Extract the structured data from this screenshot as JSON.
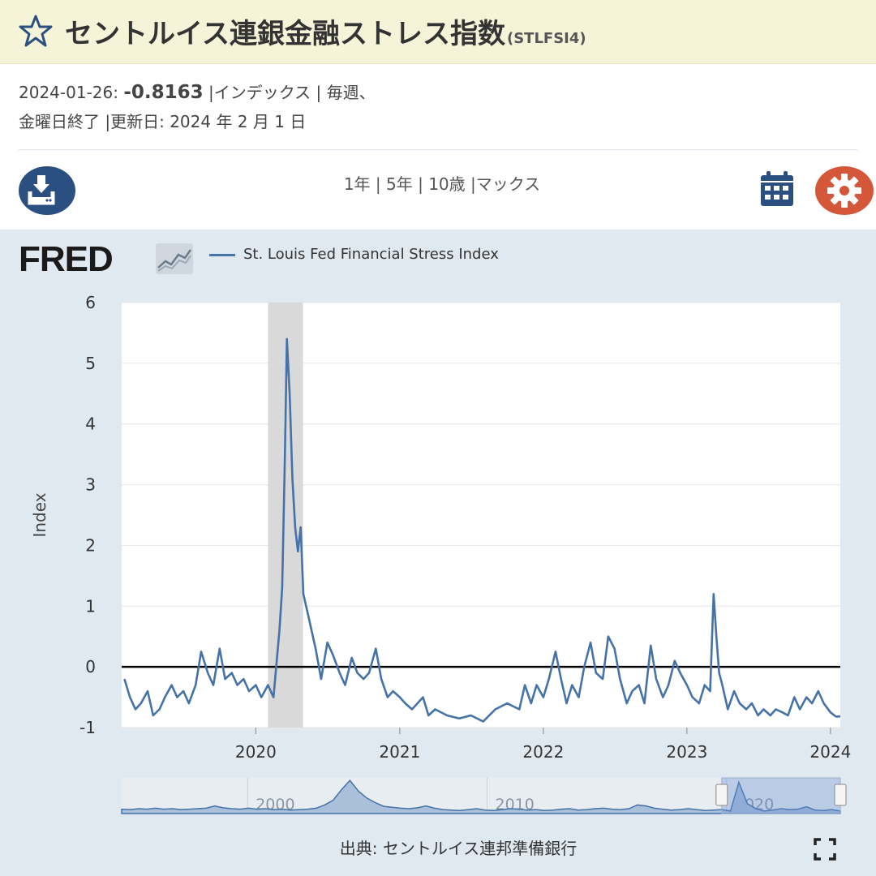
{
  "header": {
    "title": "セントルイス連銀金融ストレス指数",
    "series_id": "(STLFSI4)"
  },
  "meta": {
    "date": "2024-01-26:",
    "value": "-0.8163",
    "unit_freq": " |インデックス | 毎週、",
    "line2": "金曜日終了 |更新日: 2024 年 2 月 1 日"
  },
  "range_links": [
    "1年",
    "| 5年",
    "| 10歳",
    "|マックス"
  ],
  "legend": {
    "series_name": "St. Louis Fed Financial Stress Index"
  },
  "source": "出典: セントルイス連邦準備銀行",
  "colors": {
    "line": "#4572a7",
    "recession": "#d9d9d9",
    "panel": "#e1e9f0",
    "title_bg": "#f5f4d9"
  },
  "icons": [
    "star-icon",
    "download-icon",
    "calendar-icon",
    "gear-icon",
    "fullscreen-icon"
  ],
  "chart_data": {
    "type": "line",
    "ylabel": "Index",
    "ylim": [
      -1,
      6
    ],
    "yticks": [
      6,
      5,
      4,
      3,
      2,
      1,
      0,
      -1
    ],
    "xticks": [
      "2020",
      "2021",
      "2022",
      "2023",
      "2024"
    ],
    "xlim": [
      "2019-01-25",
      "2024-01-26"
    ],
    "zero_line": true,
    "recession_shading": [
      [
        "2020-02-01",
        "2020-04-30"
      ]
    ],
    "series": [
      {
        "name": "St. Louis Fed Financial Stress Index",
        "points": [
          [
            "2019-02-01",
            -0.2
          ],
          [
            "2019-02-15",
            -0.5
          ],
          [
            "2019-03-01",
            -0.7
          ],
          [
            "2019-03-15",
            -0.6
          ],
          [
            "2019-04-01",
            -0.4
          ],
          [
            "2019-04-15",
            -0.8
          ],
          [
            "2019-05-01",
            -0.7
          ],
          [
            "2019-05-15",
            -0.5
          ],
          [
            "2019-06-01",
            -0.3
          ],
          [
            "2019-06-15",
            -0.5
          ],
          [
            "2019-07-01",
            -0.4
          ],
          [
            "2019-07-15",
            -0.6
          ],
          [
            "2019-08-01",
            -0.3
          ],
          [
            "2019-08-15",
            0.25
          ],
          [
            "2019-09-01",
            -0.1
          ],
          [
            "2019-09-15",
            -0.3
          ],
          [
            "2019-10-01",
            0.3
          ],
          [
            "2019-10-15",
            -0.2
          ],
          [
            "2019-11-01",
            -0.1
          ],
          [
            "2019-11-15",
            -0.3
          ],
          [
            "2019-12-01",
            -0.2
          ],
          [
            "2019-12-15",
            -0.4
          ],
          [
            "2020-01-01",
            -0.3
          ],
          [
            "2020-01-15",
            -0.5
          ],
          [
            "2020-02-01",
            -0.3
          ],
          [
            "2020-02-15",
            -0.5
          ],
          [
            "2020-03-01",
            0.6
          ],
          [
            "2020-03-08",
            1.3
          ],
          [
            "2020-03-15",
            3.5
          ],
          [
            "2020-03-20",
            5.4
          ],
          [
            "2020-03-27",
            4.5
          ],
          [
            "2020-04-03",
            3.1
          ],
          [
            "2020-04-10",
            2.3
          ],
          [
            "2020-04-17",
            1.9
          ],
          [
            "2020-04-24",
            2.3
          ],
          [
            "2020-05-01",
            1.2
          ],
          [
            "2020-05-15",
            0.8
          ],
          [
            "2020-06-01",
            0.3
          ],
          [
            "2020-06-15",
            -0.2
          ],
          [
            "2020-07-01",
            0.4
          ],
          [
            "2020-07-15",
            0.2
          ],
          [
            "2020-08-01",
            -0.1
          ],
          [
            "2020-08-15",
            -0.3
          ],
          [
            "2020-09-01",
            0.15
          ],
          [
            "2020-09-15",
            -0.1
          ],
          [
            "2020-10-01",
            -0.2
          ],
          [
            "2020-10-15",
            -0.1
          ],
          [
            "2020-11-01",
            0.3
          ],
          [
            "2020-11-15",
            -0.2
          ],
          [
            "2020-12-01",
            -0.5
          ],
          [
            "2020-12-15",
            -0.4
          ],
          [
            "2021-01-01",
            -0.5
          ],
          [
            "2021-01-15",
            -0.6
          ],
          [
            "2021-02-01",
            -0.7
          ],
          [
            "2021-02-15",
            -0.6
          ],
          [
            "2021-03-01",
            -0.5
          ],
          [
            "2021-03-15",
            -0.8
          ],
          [
            "2021-04-01",
            -0.7
          ],
          [
            "2021-05-01",
            -0.8
          ],
          [
            "2021-06-01",
            -0.85
          ],
          [
            "2021-07-01",
            -0.8
          ],
          [
            "2021-08-01",
            -0.9
          ],
          [
            "2021-09-01",
            -0.7
          ],
          [
            "2021-10-01",
            -0.6
          ],
          [
            "2021-11-01",
            -0.7
          ],
          [
            "2021-11-15",
            -0.3
          ],
          [
            "2021-12-01",
            -0.6
          ],
          [
            "2021-12-15",
            -0.3
          ],
          [
            "2022-01-01",
            -0.5
          ],
          [
            "2022-01-15",
            -0.2
          ],
          [
            "2022-02-01",
            0.25
          ],
          [
            "2022-02-15",
            -0.2
          ],
          [
            "2022-03-01",
            -0.6
          ],
          [
            "2022-03-15",
            -0.3
          ],
          [
            "2022-04-01",
            -0.5
          ],
          [
            "2022-04-15",
            0.0
          ],
          [
            "2022-05-01",
            0.4
          ],
          [
            "2022-05-15",
            -0.1
          ],
          [
            "2022-06-01",
            -0.2
          ],
          [
            "2022-06-15",
            0.5
          ],
          [
            "2022-07-01",
            0.3
          ],
          [
            "2022-07-15",
            -0.2
          ],
          [
            "2022-08-01",
            -0.6
          ],
          [
            "2022-08-15",
            -0.4
          ],
          [
            "2022-09-01",
            -0.3
          ],
          [
            "2022-09-15",
            -0.6
          ],
          [
            "2022-10-01",
            0.35
          ],
          [
            "2022-10-15",
            -0.2
          ],
          [
            "2022-11-01",
            -0.5
          ],
          [
            "2022-11-15",
            -0.3
          ],
          [
            "2022-12-01",
            0.1
          ],
          [
            "2022-12-15",
            -0.1
          ],
          [
            "2023-01-01",
            -0.3
          ],
          [
            "2023-01-15",
            -0.5
          ],
          [
            "2023-02-01",
            -0.6
          ],
          [
            "2023-02-15",
            -0.3
          ],
          [
            "2023-03-01",
            -0.4
          ],
          [
            "2023-03-10",
            1.2
          ],
          [
            "2023-03-17",
            0.5
          ],
          [
            "2023-03-24",
            -0.1
          ],
          [
            "2023-04-01",
            -0.3
          ],
          [
            "2023-04-15",
            -0.7
          ],
          [
            "2023-05-01",
            -0.4
          ],
          [
            "2023-05-15",
            -0.6
          ],
          [
            "2023-06-01",
            -0.7
          ],
          [
            "2023-06-15",
            -0.6
          ],
          [
            "2023-07-01",
            -0.8
          ],
          [
            "2023-07-15",
            -0.7
          ],
          [
            "2023-08-01",
            -0.8
          ],
          [
            "2023-08-15",
            -0.7
          ],
          [
            "2023-09-01",
            -0.75
          ],
          [
            "2023-09-15",
            -0.8
          ],
          [
            "2023-10-01",
            -0.5
          ],
          [
            "2023-10-15",
            -0.7
          ],
          [
            "2023-11-01",
            -0.5
          ],
          [
            "2023-11-15",
            -0.6
          ],
          [
            "2023-12-01",
            -0.4
          ],
          [
            "2023-12-15",
            -0.6
          ],
          [
            "2024-01-01",
            -0.75
          ],
          [
            "2024-01-15",
            -0.82
          ],
          [
            "2024-01-26",
            -0.8163
          ]
        ]
      }
    ]
  },
  "navigator": {
    "labels": [
      "2000",
      "2010",
      "2020"
    ],
    "values": [
      -0.4,
      -0.5,
      -0.3,
      -0.4,
      -0.2,
      -0.4,
      -0.3,
      -0.5,
      -0.4,
      -0.3,
      -0.2,
      0.3,
      -0.1,
      -0.3,
      -0.4,
      -0.2,
      -0.4,
      -0.3,
      -0.5,
      -0.4,
      -0.6,
      -0.5,
      -0.4,
      -0.2,
      0.5,
      1.5,
      3.8,
      5.8,
      3.5,
      2.0,
      1.0,
      0.2,
      0.0,
      -0.2,
      -0.3,
      -0.1,
      0.3,
      -0.2,
      -0.5,
      -0.6,
      -0.7,
      -0.5,
      -0.3,
      -0.6,
      -0.7,
      -0.5,
      -0.3,
      -0.4,
      -0.6,
      -0.5,
      -0.7,
      -0.6,
      -0.4,
      -0.3,
      -0.6,
      -0.5,
      -0.3,
      -0.2,
      -0.4,
      -0.5,
      -0.3,
      0.5,
      0.3,
      -0.2,
      -0.4,
      -0.6,
      -0.5,
      -0.3,
      -0.5,
      -0.7,
      -0.6,
      -0.5,
      -0.8,
      5.4,
      0.8,
      -0.3,
      -0.8,
      -0.6,
      -0.3,
      -0.5,
      -0.4,
      0.1,
      -0.6,
      -0.7,
      -0.5,
      -0.8
    ],
    "ylim": [
      -1,
      6
    ],
    "selection_fraction": [
      0.835,
      1.0
    ]
  }
}
